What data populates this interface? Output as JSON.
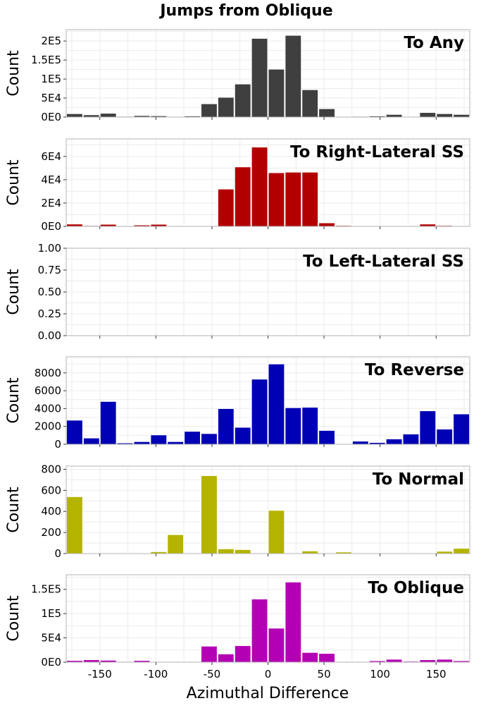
{
  "title": "Jumps from Oblique",
  "xlabel": "Azimuthal Difference",
  "colors": {
    "background": "#ffffff",
    "grid": "#ebebeb",
    "panel_border": "#b3b3b3"
  },
  "chart_data": [
    {
      "type": "bar",
      "title": "To Any",
      "ylabel": "Count",
      "color": "#3f3f3f",
      "xlim": [
        -180,
        180
      ],
      "ylim": [
        0,
        230000
      ],
      "yticks": [
        0,
        50000,
        100000,
        150000,
        200000
      ],
      "ytick_labels": [
        "0E0",
        "5E4",
        "1E5",
        "1.5E5",
        "2E5"
      ],
      "bin_width": 15,
      "bin_centers": [
        -172.5,
        -157.5,
        -142.5,
        -127.5,
        -112.5,
        -97.5,
        -82.5,
        -67.5,
        -52.5,
        -37.5,
        -22.5,
        -7.5,
        7.5,
        22.5,
        37.5,
        52.5,
        67.5,
        82.5,
        97.5,
        112.5,
        127.5,
        142.5,
        157.5,
        172.5
      ],
      "values": [
        9000,
        6000,
        10000,
        2000,
        4000,
        3500,
        1000,
        3000,
        35000,
        52000,
        87000,
        207000,
        126000,
        215000,
        72000,
        22000,
        1000,
        2000,
        3000,
        7000,
        1500,
        12000,
        9000,
        7000
      ]
    },
    {
      "type": "bar",
      "title": "To Right-Lateral SS",
      "ylabel": "Count",
      "color": "#b20000",
      "xlim": [
        -180,
        180
      ],
      "ylim": [
        0,
        75000
      ],
      "yticks": [
        0,
        20000,
        40000,
        60000
      ],
      "ytick_labels": [
        "0E0",
        "2E4",
        "4E4",
        "6E4"
      ],
      "bin_width": 15,
      "bin_centers": [
        -172.5,
        -157.5,
        -142.5,
        -127.5,
        -112.5,
        -97.5,
        -82.5,
        -67.5,
        -52.5,
        -37.5,
        -22.5,
        -7.5,
        7.5,
        22.5,
        37.5,
        52.5,
        67.5,
        82.5,
        97.5,
        112.5,
        127.5,
        142.5,
        157.5,
        172.5
      ],
      "values": [
        2000,
        700,
        1800,
        300,
        1200,
        1800,
        300,
        300,
        500,
        32000,
        51000,
        68000,
        46000,
        46500,
        46500,
        3000,
        800,
        300,
        600,
        400,
        300,
        2000,
        800,
        500
      ]
    },
    {
      "type": "bar",
      "title": "To Left-Lateral SS",
      "ylabel": "Count",
      "color": "#00aa00",
      "xlim": [
        -180,
        180
      ],
      "ylim": [
        0,
        1.0
      ],
      "yticks": [
        0,
        0.25,
        0.5,
        0.75,
        1.0
      ],
      "ytick_labels": [
        "0.00",
        "0.25",
        "0.50",
        "0.75",
        "1.00"
      ],
      "bin_width": 15,
      "bin_centers": [],
      "values": []
    },
    {
      "type": "bar",
      "title": "To Reverse",
      "ylabel": "Count",
      "color": "#0000b4",
      "xlim": [
        -180,
        180
      ],
      "ylim": [
        0,
        9800
      ],
      "yticks": [
        0,
        2000,
        4000,
        6000,
        8000
      ],
      "ytick_labels": [
        "0",
        "2000",
        "4000",
        "6000",
        "8000"
      ],
      "bin_width": 15,
      "bin_centers": [
        -172.5,
        -157.5,
        -142.5,
        -127.5,
        -112.5,
        -97.5,
        -82.5,
        -67.5,
        -52.5,
        -37.5,
        -22.5,
        -7.5,
        7.5,
        22.5,
        37.5,
        52.5,
        67.5,
        82.5,
        97.5,
        112.5,
        127.5,
        142.5,
        157.5,
        172.5
      ],
      "values": [
        2700,
        700,
        4800,
        150,
        300,
        1050,
        300,
        1450,
        1200,
        4000,
        1900,
        7300,
        9000,
        4100,
        4150,
        1550,
        50,
        350,
        200,
        600,
        1150,
        3750,
        1700,
        3400
      ]
    },
    {
      "type": "bar",
      "title": "To Normal",
      "ylabel": "Count",
      "color": "#b4b400",
      "xlim": [
        -180,
        180
      ],
      "ylim": [
        0,
        830
      ],
      "yticks": [
        0,
        200,
        400,
        600,
        800
      ],
      "ytick_labels": [
        "0",
        "200",
        "400",
        "600",
        "800"
      ],
      "bin_width": 15,
      "bin_centers": [
        -172.5,
        -157.5,
        -142.5,
        -127.5,
        -112.5,
        -97.5,
        -82.5,
        -67.5,
        -52.5,
        -37.5,
        -22.5,
        -7.5,
        7.5,
        22.5,
        37.5,
        52.5,
        67.5,
        82.5,
        97.5,
        112.5,
        127.5,
        142.5,
        157.5,
        172.5
      ],
      "values": [
        540,
        0,
        0,
        0,
        0,
        18,
        180,
        0,
        740,
        45,
        38,
        0,
        410,
        0,
        25,
        0,
        15,
        0,
        0,
        5,
        5,
        0,
        22,
        50
      ]
    },
    {
      "type": "bar",
      "title": "To Oblique",
      "ylabel": "Count",
      "color": "#b400b4",
      "xlim": [
        -180,
        180
      ],
      "ylim": [
        0,
        180000
      ],
      "yticks": [
        0,
        50000,
        100000,
        150000
      ],
      "ytick_labels": [
        "0E0",
        "5E4",
        "1E5",
        "1.5E5"
      ],
      "bin_width": 15,
      "bin_centers": [
        -172.5,
        -157.5,
        -142.5,
        -127.5,
        -112.5,
        -97.5,
        -82.5,
        -67.5,
        -52.5,
        -37.5,
        -22.5,
        -7.5,
        7.5,
        22.5,
        37.5,
        52.5,
        67.5,
        82.5,
        97.5,
        112.5,
        127.5,
        142.5,
        157.5,
        172.5
      ],
      "values": [
        3500,
        5000,
        4000,
        1500,
        3500,
        1000,
        0,
        1000,
        33000,
        17000,
        34000,
        130000,
        70000,
        165000,
        20000,
        18000,
        500,
        1000,
        3000,
        6000,
        2000,
        5000,
        6000,
        3000
      ]
    }
  ],
  "x_axis": {
    "ticks": [
      -150,
      -100,
      -50,
      0,
      50,
      100,
      150
    ],
    "tick_labels": [
      "-150",
      "-100",
      "-50",
      "0",
      "50",
      "100",
      "150"
    ]
  }
}
